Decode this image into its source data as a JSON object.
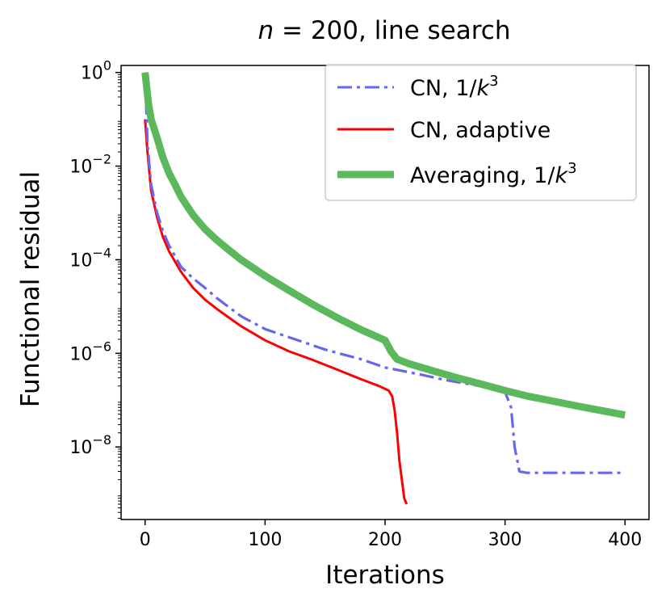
{
  "chart_data": {
    "type": "line",
    "title_parts": {
      "var": "n",
      "rest": " = 200, line search"
    },
    "xlabel": "Iterations",
    "ylabel": "Functional residual",
    "xlim": [
      -20,
      420
    ],
    "ylim_log10": [
      -9.55,
      0.15
    ],
    "yscale": "log",
    "x_ticks": [
      0,
      100,
      200,
      300,
      400
    ],
    "y_ticks": [
      {
        "base": "10",
        "exp": "0",
        "value": 1
      },
      {
        "base": "10",
        "exp": "−2",
        "value": 0.01
      },
      {
        "base": "10",
        "exp": "−4",
        "value": 0.0001
      },
      {
        "base": "10",
        "exp": "−6",
        "value": 1e-06
      },
      {
        "base": "10",
        "exp": "−8",
        "value": 1e-08
      }
    ],
    "legend_position": "top-right",
    "grid": false,
    "series": [
      {
        "name_prefix": "CN, 1/",
        "name_var": "k",
        "name_sup": "3",
        "color": "#6666ee",
        "style": "dashdot",
        "x": [
          0,
          2,
          5,
          10,
          15,
          20,
          30,
          40,
          50,
          60,
          80,
          100,
          130,
          150,
          180,
          200,
          230,
          250,
          270,
          290,
          300,
          305,
          308,
          312,
          318,
          330,
          350,
          380,
          400
        ],
        "y": [
          1,
          0.03,
          0.004,
          0.001,
          0.0004,
          0.0002,
          7e-05,
          4e-05,
          2.5e-05,
          1.5e-05,
          6.2e-06,
          3.3e-06,
          1.8e-06,
          1.2e-06,
          7.5e-07,
          5e-07,
          3.5e-07,
          2.7e-07,
          2.2e-07,
          1.8e-07,
          1.5e-07,
          7e-08,
          1e-08,
          3e-09,
          2.8e-09,
          2.8e-09,
          2.8e-09,
          2.8e-09,
          2.8e-09
        ]
      },
      {
        "name": "CN, adaptive",
        "color": "#ff0000",
        "style": "solid",
        "x": [
          0,
          2,
          5,
          10,
          15,
          20,
          30,
          40,
          50,
          60,
          80,
          100,
          120,
          140,
          160,
          180,
          195,
          203,
          206,
          208,
          210,
          212,
          214,
          216,
          218
        ],
        "y": [
          0.1,
          0.02,
          0.003,
          0.0008,
          0.0003,
          0.00015,
          5.5e-05,
          2.5e-05,
          1.4e-05,
          8.8e-06,
          3.8e-06,
          1.9e-06,
          1.1e-06,
          7.2e-07,
          4.5e-07,
          2.8e-07,
          2e-07,
          1.6e-07,
          1.2e-07,
          6e-08,
          2e-08,
          5e-09,
          2e-09,
          8e-10,
          6e-10
        ]
      },
      {
        "name_prefix": "Averaging, 1/",
        "name_var": "k",
        "name_sup": "3",
        "color": "#5cb85c",
        "style": "solid-thick",
        "x": [
          0,
          3,
          5,
          10,
          15,
          20,
          25,
          30,
          40,
          50,
          60,
          70,
          80,
          100,
          120,
          140,
          160,
          180,
          200,
          205,
          210,
          220,
          240,
          260,
          280,
          300,
          320,
          340,
          360,
          380,
          400
        ],
        "y": [
          1,
          0.2,
          0.1,
          0.04,
          0.015,
          0.007,
          0.004,
          0.0022,
          0.0009,
          0.00045,
          0.00026,
          0.00016,
          0.0001,
          4.5e-05,
          2.2e-05,
          1.1e-05,
          5.8e-06,
          3.2e-06,
          1.9e-06,
          1.1e-06,
          7.5e-07,
          6e-07,
          4.2e-07,
          3e-07,
          2.2e-07,
          1.6e-07,
          1.2e-07,
          9.5e-08,
          7.5e-08,
          6e-08,
          4.8e-08
        ]
      }
    ]
  }
}
